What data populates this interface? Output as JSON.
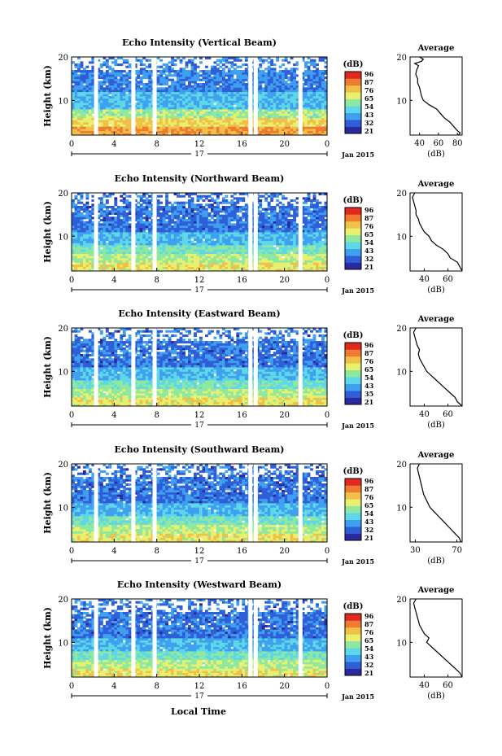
{
  "figure": {
    "bottom_xlabel": "Local Time"
  },
  "colorscale": {
    "colors": [
      "#2a2a9e",
      "#2f5fd8",
      "#3fa0f0",
      "#5ed8e8",
      "#8ee8a0",
      "#e8f070",
      "#f0c048",
      "#f07a30",
      "#e02a20"
    ]
  },
  "chart_data": [
    {
      "type": "heatmap",
      "title": "Echo Intensity (Vertical Beam)",
      "ylabel": "Height (km)",
      "ylim": [
        2,
        20
      ],
      "xticks": [
        "0",
        "4",
        "8",
        "12",
        "16",
        "20",
        "0"
      ],
      "xlim": [
        0,
        24
      ],
      "date_day": "17",
      "date_label": "Jan 2015",
      "colorbar_unit": "(dB)",
      "colorbar_ticks": [
        "96",
        "87",
        "76",
        "65",
        "54",
        "43",
        "32",
        "21"
      ],
      "gaps": [
        2.3,
        5.8,
        7.8,
        16.8,
        17.3,
        21.5
      ],
      "profile": {
        "title": "Average",
        "xlabel": "(dB)",
        "xticks": [
          "40",
          "60",
          "80"
        ],
        "xlim": [
          30,
          85
        ],
        "ylim": [
          2,
          20
        ],
        "points": [
          [
            81,
            2
          ],
          [
            83,
            2.5
          ],
          [
            80,
            3
          ],
          [
            76,
            4
          ],
          [
            72,
            5
          ],
          [
            66,
            6
          ],
          [
            62,
            7
          ],
          [
            58,
            8
          ],
          [
            50,
            9
          ],
          [
            44,
            10
          ],
          [
            42,
            11
          ],
          [
            41,
            12
          ],
          [
            40,
            13
          ],
          [
            38,
            14
          ],
          [
            38,
            15
          ],
          [
            36,
            16
          ],
          [
            37,
            17
          ],
          [
            39,
            18
          ],
          [
            35,
            18.5
          ],
          [
            42,
            19
          ],
          [
            44,
            19.5
          ],
          [
            40,
            20
          ]
        ]
      }
    },
    {
      "type": "heatmap",
      "title": "Echo Intensity (Northward Beam)",
      "ylabel": "Height (km)",
      "ylim": [
        2,
        20
      ],
      "xticks": [
        "0",
        "4",
        "8",
        "12",
        "16",
        "20",
        "0"
      ],
      "xlim": [
        0,
        24
      ],
      "date_day": "17",
      "date_label": "Jan 2015",
      "colorbar_unit": "(dB)",
      "colorbar_ticks": [
        "96",
        "87",
        "76",
        "65",
        "54",
        "43",
        "32",
        "21"
      ],
      "gaps": [
        2.3,
        5.8,
        7.8,
        16.8,
        17.3,
        21.5
      ],
      "profile": {
        "title": "Average",
        "xlabel": "(dB)",
        "xticks": [
          "40",
          "60"
        ],
        "xlim": [
          28,
          72
        ],
        "ylim": [
          2,
          20
        ],
        "points": [
          [
            72,
            2
          ],
          [
            70,
            3
          ],
          [
            68,
            4
          ],
          [
            62,
            5
          ],
          [
            60,
            6
          ],
          [
            56,
            7
          ],
          [
            50,
            8
          ],
          [
            46,
            9
          ],
          [
            44,
            10
          ],
          [
            40,
            11
          ],
          [
            38,
            12
          ],
          [
            36,
            13
          ],
          [
            35,
            14
          ],
          [
            33,
            15
          ],
          [
            33,
            16
          ],
          [
            32,
            17
          ],
          [
            31,
            18
          ],
          [
            30,
            19
          ],
          [
            32,
            20
          ]
        ]
      }
    },
    {
      "type": "heatmap",
      "title": "Echo Intensity (Eastward Beam)",
      "ylabel": "Height (km)",
      "ylim": [
        2,
        20
      ],
      "xticks": [
        "0",
        "4",
        "8",
        "12",
        "16",
        "20",
        "0"
      ],
      "xlim": [
        0,
        24
      ],
      "date_day": "17",
      "date_label": "Jan 2015",
      "colorbar_unit": "(dB)",
      "colorbar_ticks": [
        "96",
        "87",
        "76",
        "65",
        "54",
        "43",
        "35",
        "21"
      ],
      "gaps": [
        2.3,
        5.8,
        7.8,
        16.8,
        17.3,
        21.5
      ],
      "profile": {
        "title": "Average",
        "xlabel": "(dB)",
        "xticks": [
          "40",
          "60"
        ],
        "xlim": [
          28,
          72
        ],
        "ylim": [
          2,
          20
        ],
        "points": [
          [
            72,
            2
          ],
          [
            68,
            3
          ],
          [
            66,
            4
          ],
          [
            62,
            5
          ],
          [
            58,
            6
          ],
          [
            54,
            7
          ],
          [
            50,
            8
          ],
          [
            46,
            9
          ],
          [
            42,
            10
          ],
          [
            40,
            11
          ],
          [
            38,
            12
          ],
          [
            36,
            13
          ],
          [
            35,
            14
          ],
          [
            36,
            15
          ],
          [
            34,
            16
          ],
          [
            33,
            17
          ],
          [
            32,
            18
          ],
          [
            31,
            19
          ],
          [
            33,
            20
          ]
        ]
      }
    },
    {
      "type": "heatmap",
      "title": "Echo Intensity (Southward Beam)",
      "ylabel": "Height (km)",
      "ylim": [
        2,
        20
      ],
      "xticks": [
        "0",
        "4",
        "8",
        "12",
        "16",
        "20",
        "0"
      ],
      "xlim": [
        0,
        24
      ],
      "date_day": "17",
      "date_label": "Jan 2015",
      "colorbar_unit": "(dB)",
      "colorbar_ticks": [
        "96",
        "87",
        "76",
        "65",
        "54",
        "43",
        "32",
        "21"
      ],
      "gaps": [
        2.3,
        5.8,
        7.8,
        16.8,
        17.3,
        21.5
      ],
      "profile": {
        "title": "Average",
        "xlabel": "(dB)",
        "xticks": [
          "30",
          "70"
        ],
        "xlim": [
          25,
          75
        ],
        "ylim": [
          2,
          20
        ],
        "points": [
          [
            74,
            2
          ],
          [
            72,
            3
          ],
          [
            68,
            4
          ],
          [
            64,
            5
          ],
          [
            60,
            6
          ],
          [
            56,
            7
          ],
          [
            52,
            8
          ],
          [
            48,
            9
          ],
          [
            44,
            10
          ],
          [
            42,
            11
          ],
          [
            40,
            12
          ],
          [
            38,
            13
          ],
          [
            37,
            14
          ],
          [
            36,
            15
          ],
          [
            35,
            16
          ],
          [
            34,
            17
          ],
          [
            33,
            18
          ],
          [
            32,
            19
          ],
          [
            34,
            20
          ]
        ]
      }
    },
    {
      "type": "heatmap",
      "title": "Echo Intensity (Westward Beam)",
      "ylabel": "Height (km)",
      "ylim": [
        2,
        20
      ],
      "xticks": [
        "0",
        "4",
        "8",
        "12",
        "16",
        "20",
        "0"
      ],
      "xlim": [
        0,
        24
      ],
      "date_day": "17",
      "date_label": "Jan 2015",
      "colorbar_unit": "(dB)",
      "colorbar_ticks": [
        "96",
        "87",
        "76",
        "65",
        "54",
        "43",
        "32",
        "21"
      ],
      "gaps": [
        2.3,
        5.8,
        7.8,
        16.8,
        17.3,
        21.5
      ],
      "profile": {
        "title": "Average",
        "xlabel": "(dB)",
        "xticks": [
          "40",
          "60"
        ],
        "xlim": [
          28,
          72
        ],
        "ylim": [
          2,
          20
        ],
        "points": [
          [
            72,
            2
          ],
          [
            70,
            3
          ],
          [
            66,
            4
          ],
          [
            62,
            5
          ],
          [
            58,
            6
          ],
          [
            54,
            7
          ],
          [
            50,
            8
          ],
          [
            46,
            9
          ],
          [
            42,
            10
          ],
          [
            44,
            11
          ],
          [
            40,
            12
          ],
          [
            38,
            13
          ],
          [
            36,
            14
          ],
          [
            35,
            15
          ],
          [
            34,
            16
          ],
          [
            33,
            17
          ],
          [
            32,
            18
          ],
          [
            31,
            19
          ],
          [
            33,
            20
          ]
        ]
      }
    }
  ]
}
